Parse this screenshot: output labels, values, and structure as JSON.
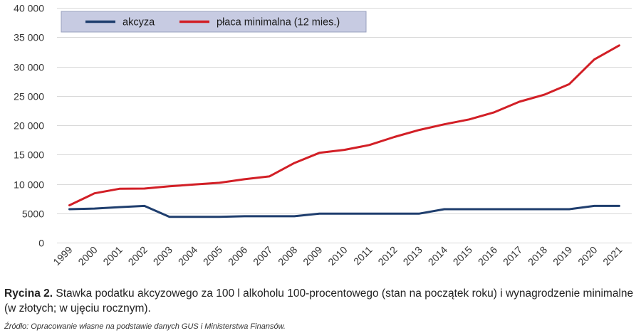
{
  "chart_data": {
    "type": "line",
    "categories": [
      "1999",
      "2000",
      "2001",
      "2002",
      "2003",
      "2004",
      "2005",
      "2006",
      "2007",
      "2008",
      "2009",
      "2010",
      "2011",
      "2012",
      "2013",
      "2014",
      "2015",
      "2016",
      "2017",
      "2018",
      "2019",
      "2020",
      "2021"
    ],
    "series": [
      {
        "name": "akcyza",
        "color": "#1f3e6e",
        "values": [
          5700,
          5800,
          6050,
          6250,
          4400,
          4400,
          4400,
          4500,
          4500,
          4500,
          4950,
          4950,
          4950,
          4950,
          4950,
          5700,
          5700,
          5700,
          5700,
          5700,
          5700,
          6250,
          6250
        ]
      },
      {
        "name": "płaca minimalna (12 mies.)",
        "color": "#d21f26",
        "values": [
          6360,
          8400,
          9180,
          9210,
          9600,
          9900,
          10200,
          10800,
          11280,
          13560,
          15300,
          15804,
          16632,
          18000,
          19200,
          20160,
          21000,
          22200,
          24000,
          25200,
          27000,
          31200,
          33600
        ]
      }
    ],
    "ylim": [
      0,
      40000
    ],
    "yticks": [
      0,
      5000,
      10000,
      15000,
      20000,
      25000,
      30000,
      35000,
      40000
    ],
    "ytick_labels": [
      "0",
      "5000",
      "10 000",
      "15 000",
      "20 000",
      "25 000",
      "30 000",
      "35 000",
      "40 000"
    ],
    "grid": true,
    "legend_position": "top-left"
  },
  "caption": {
    "label": "Rycina 2.",
    "text": "Stawka podatku akcyzowego za 100 l alkoholu 100-procentowego (stan na początek roku) i wynagrodzenie minimalne (w złotych; w ujęciu rocznym).",
    "source": "Źródło: Opracowanie własne na podstawie danych GUS i Ministerstwa Finansów."
  }
}
